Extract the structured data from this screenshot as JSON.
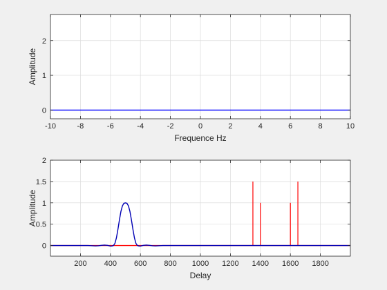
{
  "chart_data": [
    {
      "type": "line",
      "title": "",
      "xlabel": "Frequence Hz",
      "ylabel": "Amplitude",
      "xlim": [
        -10,
        10
      ],
      "ylim": [
        -0.25,
        2.75
      ],
      "xticks": [
        -10,
        -8,
        -6,
        -4,
        -2,
        0,
        2,
        4,
        6,
        8,
        10
      ],
      "xtick_labels": [
        "-10",
        "-8",
        "-6",
        "-4",
        "-2",
        "0",
        "2",
        "4",
        "6",
        "8",
        "10"
      ],
      "yticks": [
        0,
        1,
        2
      ],
      "ytick_labels": [
        "0",
        "1",
        "2"
      ],
      "grid": true,
      "series": [
        {
          "color": "#0000ff",
          "x": [
            -10,
            10
          ],
          "y": [
            0,
            0
          ]
        }
      ]
    },
    {
      "type": "line",
      "title": "",
      "xlabel": "Delay",
      "ylabel": "Amplitude",
      "xlim": [
        0,
        2000
      ],
      "ylim": [
        -0.25,
        2
      ],
      "xticks": [
        200,
        400,
        600,
        800,
        1000,
        1200,
        1400,
        1600,
        1800
      ],
      "xtick_labels": [
        "200",
        "400",
        "600",
        "800",
        "1000",
        "1200",
        "1400",
        "1600",
        "1800"
      ],
      "yticks": [
        0,
        0.5,
        1,
        1.5,
        2
      ],
      "ytick_labels": [
        "0",
        "0.5",
        "1",
        "1.5",
        "2"
      ],
      "grid": true,
      "series": [
        {
          "color": "#ff0000",
          "stems": [
            {
              "x": 1350,
              "y": 1.5
            },
            {
              "x": 1400,
              "y": 1.0
            },
            {
              "x": 1600,
              "y": 1.0
            },
            {
              "x": 1650,
              "y": 1.5
            }
          ],
          "x": [
            0,
            2000
          ],
          "y": [
            0,
            0
          ]
        },
        {
          "color": "#0000b4",
          "x": [
            0,
            250,
            280,
            300,
            320,
            340,
            360,
            380,
            400,
            410,
            420,
            430,
            440,
            450,
            460,
            470,
            480,
            490,
            500,
            510,
            520,
            530,
            540,
            550,
            560,
            570,
            580,
            590,
            600,
            620,
            640,
            660,
            680,
            700,
            720,
            750,
            2000
          ],
          "y": [
            0,
            0,
            -0.006,
            -0.01,
            -0.006,
            0.004,
            0.01,
            0.004,
            -0.015,
            -0.012,
            0.0,
            0.05,
            0.18,
            0.38,
            0.6,
            0.8,
            0.93,
            0.99,
            1.0,
            0.99,
            0.93,
            0.8,
            0.6,
            0.38,
            0.18,
            0.05,
            0.0,
            -0.012,
            -0.015,
            0.004,
            0.01,
            0.004,
            -0.006,
            -0.01,
            -0.006,
            0,
            0
          ]
        }
      ]
    }
  ]
}
